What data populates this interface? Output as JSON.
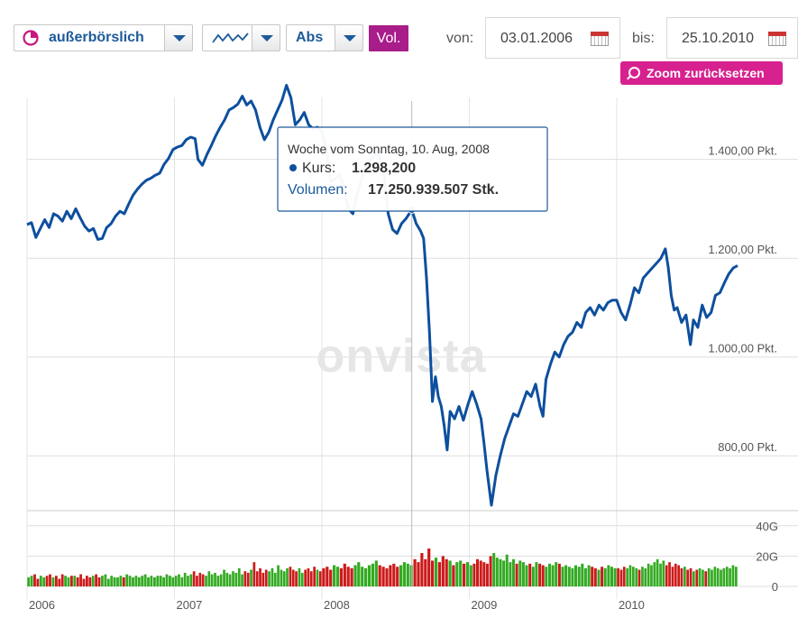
{
  "toolbar": {
    "exchange_label": "außerbörslich",
    "scale_label": "Abs",
    "volume_label": "Vol.",
    "from_label": "von:",
    "from_date": "03.01.2006",
    "to_label": "bis:",
    "to_date": "25.10.2010",
    "zoom_reset_label": "Zoom zurücksetzen"
  },
  "icons": [
    "pie-icon",
    "line-chart-icon",
    "dropdown-arrow-icon",
    "calendar-icon",
    "magnifier-icon"
  ],
  "colors": {
    "line": "#0d4f9e",
    "vol_up": "#33aa22",
    "vol_down": "#cc1a1a",
    "brand": "#a91d8a",
    "zoom": "#d6218f"
  },
  "watermark": "onvista",
  "tooltip": {
    "title": "Woche vom Sonntag, 10. Aug, 2008",
    "price_label": "Kurs:",
    "price_value": "1.298,200",
    "volume_label": "Volumen:",
    "volume_value": "17.250.939.507 Stk."
  },
  "chart_data": {
    "type": "line",
    "price_axis": {
      "min": 700,
      "max": 1540,
      "ticks": [
        800,
        1000,
        1200,
        1400
      ],
      "tick_labels": [
        "800,00 Pkt.",
        "1.000,00 Pkt.",
        "1.200,00 Pkt.",
        "1.400,00 Pkt."
      ]
    },
    "volume_axis": {
      "min": 0,
      "max": 50,
      "ticks": [
        0,
        20,
        40
      ],
      "tick_labels": [
        "0",
        "20G",
        "40G"
      ]
    },
    "x_axis": {
      "min": 2006.0,
      "max": 2010.82,
      "ticks": [
        2006,
        2007,
        2008,
        2009,
        2010
      ],
      "tick_labels": [
        "2006",
        "2007",
        "2008",
        "2009",
        "2010"
      ]
    },
    "hover": {
      "x": 2008.61,
      "y": 1298.2
    },
    "series": [
      {
        "values": [
          [
            2006.0,
            1268
          ],
          [
            2006.03,
            1272
          ],
          [
            2006.06,
            1242
          ],
          [
            2006.09,
            1260
          ],
          [
            2006.12,
            1278
          ],
          [
            2006.15,
            1262
          ],
          [
            2006.18,
            1290
          ],
          [
            2006.21,
            1285
          ],
          [
            2006.24,
            1275
          ],
          [
            2006.27,
            1295
          ],
          [
            2006.3,
            1280
          ],
          [
            2006.33,
            1300
          ],
          [
            2006.36,
            1282
          ],
          [
            2006.39,
            1265
          ],
          [
            2006.42,
            1255
          ],
          [
            2006.45,
            1260
          ],
          [
            2006.48,
            1238
          ],
          [
            2006.51,
            1240
          ],
          [
            2006.54,
            1262
          ],
          [
            2006.57,
            1270
          ],
          [
            2006.6,
            1285
          ],
          [
            2006.63,
            1295
          ],
          [
            2006.66,
            1290
          ],
          [
            2006.69,
            1310
          ],
          [
            2006.72,
            1328
          ],
          [
            2006.75,
            1340
          ],
          [
            2006.78,
            1350
          ],
          [
            2006.81,
            1358
          ],
          [
            2006.84,
            1362
          ],
          [
            2006.87,
            1368
          ],
          [
            2006.9,
            1372
          ],
          [
            2006.93,
            1390
          ],
          [
            2006.96,
            1402
          ],
          [
            2006.99,
            1420
          ],
          [
            2007.02,
            1425
          ],
          [
            2007.05,
            1428
          ],
          [
            2007.08,
            1440
          ],
          [
            2007.11,
            1445
          ],
          [
            2007.14,
            1442
          ],
          [
            2007.16,
            1400
          ],
          [
            2007.19,
            1388
          ],
          [
            2007.22,
            1410
          ],
          [
            2007.25,
            1428
          ],
          [
            2007.28,
            1448
          ],
          [
            2007.31,
            1465
          ],
          [
            2007.34,
            1480
          ],
          [
            2007.37,
            1500
          ],
          [
            2007.4,
            1505
          ],
          [
            2007.43,
            1512
          ],
          [
            2007.46,
            1528
          ],
          [
            2007.49,
            1510
          ],
          [
            2007.52,
            1518
          ],
          [
            2007.55,
            1500
          ],
          [
            2007.58,
            1465
          ],
          [
            2007.61,
            1440
          ],
          [
            2007.64,
            1455
          ],
          [
            2007.67,
            1480
          ],
          [
            2007.7,
            1500
          ],
          [
            2007.73,
            1520
          ],
          [
            2007.76,
            1550
          ],
          [
            2007.79,
            1525
          ],
          [
            2007.82,
            1470
          ],
          [
            2007.85,
            1480
          ],
          [
            2007.88,
            1495
          ],
          [
            2007.91,
            1470
          ],
          [
            2007.94,
            1462
          ],
          [
            2007.97,
            1465
          ],
          [
            2008.0,
            1455
          ],
          [
            2008.03,
            1420
          ],
          [
            2008.06,
            1355
          ],
          [
            2008.09,
            1360
          ],
          [
            2008.12,
            1370
          ],
          [
            2008.15,
            1340
          ],
          [
            2008.18,
            1300
          ],
          [
            2008.21,
            1290
          ],
          [
            2008.24,
            1330
          ],
          [
            2008.27,
            1360
          ],
          [
            2008.3,
            1390
          ],
          [
            2008.33,
            1398
          ],
          [
            2008.36,
            1412
          ],
          [
            2008.39,
            1408
          ],
          [
            2008.42,
            1375
          ],
          [
            2008.45,
            1290
          ],
          [
            2008.48,
            1258
          ],
          [
            2008.51,
            1250
          ],
          [
            2008.54,
            1270
          ],
          [
            2008.57,
            1280
          ],
          [
            2008.61,
            1298
          ],
          [
            2008.64,
            1270
          ],
          [
            2008.67,
            1255
          ],
          [
            2008.69,
            1240
          ],
          [
            2008.71,
            1160
          ],
          [
            2008.73,
            1050
          ],
          [
            2008.75,
            910
          ],
          [
            2008.77,
            960
          ],
          [
            2008.79,
            920
          ],
          [
            2008.81,
            900
          ],
          [
            2008.83,
            860
          ],
          [
            2008.85,
            812
          ],
          [
            2008.87,
            890
          ],
          [
            2008.9,
            875
          ],
          [
            2008.93,
            900
          ],
          [
            2008.96,
            872
          ],
          [
            2008.99,
            903
          ],
          [
            2009.02,
            930
          ],
          [
            2009.05,
            905
          ],
          [
            2009.08,
            875
          ],
          [
            2009.1,
            825
          ],
          [
            2009.12,
            770
          ],
          [
            2009.15,
            700
          ],
          [
            2009.18,
            760
          ],
          [
            2009.21,
            800
          ],
          [
            2009.24,
            835
          ],
          [
            2009.27,
            860
          ],
          [
            2009.3,
            885
          ],
          [
            2009.33,
            880
          ],
          [
            2009.36,
            905
          ],
          [
            2009.39,
            930
          ],
          [
            2009.42,
            920
          ],
          [
            2009.45,
            945
          ],
          [
            2009.48,
            900
          ],
          [
            2009.5,
            880
          ],
          [
            2009.52,
            955
          ],
          [
            2009.55,
            985
          ],
          [
            2009.58,
            1010
          ],
          [
            2009.61,
            1000
          ],
          [
            2009.64,
            1025
          ],
          [
            2009.67,
            1042
          ],
          [
            2009.7,
            1050
          ],
          [
            2009.73,
            1070
          ],
          [
            2009.76,
            1060
          ],
          [
            2009.79,
            1090
          ],
          [
            2009.82,
            1100
          ],
          [
            2009.85,
            1085
          ],
          [
            2009.88,
            1105
          ],
          [
            2009.91,
            1095
          ],
          [
            2009.94,
            1110
          ],
          [
            2009.97,
            1115
          ],
          [
            2010.0,
            1115
          ],
          [
            2010.03,
            1090
          ],
          [
            2010.06,
            1075
          ],
          [
            2010.09,
            1105
          ],
          [
            2010.12,
            1140
          ],
          [
            2010.15,
            1130
          ],
          [
            2010.18,
            1160
          ],
          [
            2010.21,
            1170
          ],
          [
            2010.24,
            1180
          ],
          [
            2010.27,
            1190
          ],
          [
            2010.3,
            1200
          ],
          [
            2010.33,
            1219
          ],
          [
            2010.35,
            1180
          ],
          [
            2010.37,
            1125
          ],
          [
            2010.39,
            1095
          ],
          [
            2010.41,
            1100
          ],
          [
            2010.44,
            1070
          ],
          [
            2010.47,
            1085
          ],
          [
            2010.5,
            1025
          ],
          [
            2010.52,
            1075
          ],
          [
            2010.55,
            1060
          ],
          [
            2010.58,
            1105
          ],
          [
            2010.61,
            1080
          ],
          [
            2010.64,
            1090
          ],
          [
            2010.67,
            1125
          ],
          [
            2010.7,
            1130
          ],
          [
            2010.73,
            1150
          ],
          [
            2010.76,
            1168
          ],
          [
            2010.79,
            1180
          ],
          [
            2010.82,
            1185
          ]
        ]
      }
    ],
    "volume_bars": [
      [
        6,
        7,
        8,
        5,
        7,
        6,
        7,
        8,
        6,
        7,
        5,
        8,
        7,
        6,
        7,
        7,
        6,
        8,
        5,
        7,
        6,
        7,
        8,
        6,
        7,
        8,
        5,
        7,
        6,
        6,
        7,
        6,
        8,
        7,
        6,
        7,
        6,
        7,
        8,
        6,
        7,
        6,
        7,
        7,
        6,
        8,
        7,
        6
      ],
      [
        7,
        8,
        6,
        9,
        7,
        8,
        10,
        7,
        9,
        8,
        7,
        10,
        8,
        9,
        7,
        8,
        11,
        9,
        8,
        10,
        9,
        12,
        8,
        10,
        9,
        11,
        16,
        10,
        12,
        9,
        11,
        10,
        12,
        9,
        14,
        11,
        10,
        12,
        13,
        11,
        10,
        12,
        9,
        11,
        12,
        10,
        13,
        11,
        10
      ],
      [
        12,
        13,
        11,
        14,
        13,
        12,
        15,
        13,
        12,
        14,
        16,
        13,
        12,
        14,
        15,
        17,
        14,
        13,
        12,
        14,
        15,
        13,
        14,
        16,
        15,
        14,
        18,
        16,
        22,
        18,
        25,
        17,
        19,
        16,
        20,
        18,
        17,
        14,
        16,
        17,
        15,
        16
      ],
      [
        14,
        15,
        18,
        17,
        16,
        15,
        20,
        22,
        19,
        18,
        17,
        21,
        16,
        18,
        15,
        17,
        16,
        14,
        15,
        13,
        16,
        15,
        14,
        13,
        15,
        14,
        16,
        15,
        13,
        14,
        13,
        12,
        14,
        13,
        15,
        12,
        14,
        13,
        12,
        11,
        13,
        12,
        14,
        13,
        12
      ],
      [
        12,
        11,
        13,
        12,
        14,
        13,
        12,
        11,
        13,
        12,
        15,
        14,
        16,
        18,
        15,
        17,
        14,
        16,
        13,
        15,
        14,
        12,
        13,
        11,
        12,
        10,
        11,
        12,
        11,
        10,
        12,
        11,
        13,
        12,
        11,
        12,
        13,
        12,
        14,
        13
      ]
    ]
  }
}
